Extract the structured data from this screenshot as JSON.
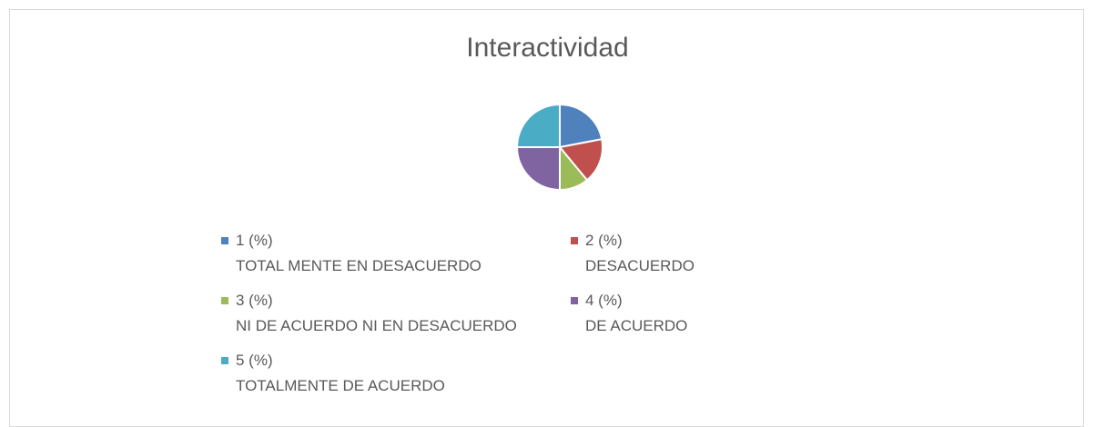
{
  "chart_data": {
    "type": "pie",
    "title": "Interactividad",
    "categories": [
      "1 (%)\nTOTAL MENTE EN DESACUERDO",
      "2 (%)\nDESACUERDO",
      "3 (%)\nNI DE ACUERDO NI EN DESACUERDO",
      "4 (%)\nDE ACUERDO",
      "5 (%)\nTOTALMENTE DE ACUERDO"
    ],
    "values": [
      22,
      17,
      11,
      25,
      25
    ],
    "colors": [
      "#4f81bd",
      "#c0504d",
      "#9bbb59",
      "#8064a2",
      "#4bacc6"
    ],
    "legend": "bottom"
  }
}
